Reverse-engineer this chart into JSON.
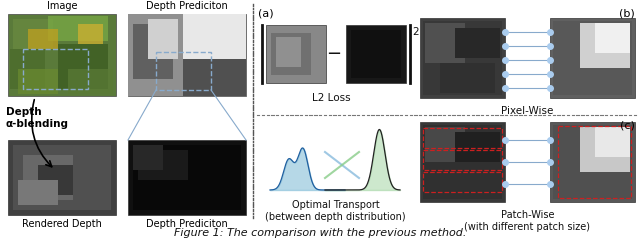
{
  "title": "Figure 1: The comparison with the previous method.",
  "bg_color": "#ffffff",
  "label_a": "(a)",
  "label_b": "(b)",
  "label_c": "(c)",
  "text_image": "Image",
  "text_depth_pred_top": "Depth Prediciton",
  "text_depth_alpha": "Depth\nα-blending",
  "text_rendered": "Rendered Depth",
  "text_depth_pred_bot": "Depth Prediciton",
  "text_l2": "L2 Loss",
  "text_pixel": "Pixel-Wise",
  "text_ot": "Optimal Transport\n(between depth distribution)",
  "text_patch": "Patch-Wise\n(with different patch size)"
}
